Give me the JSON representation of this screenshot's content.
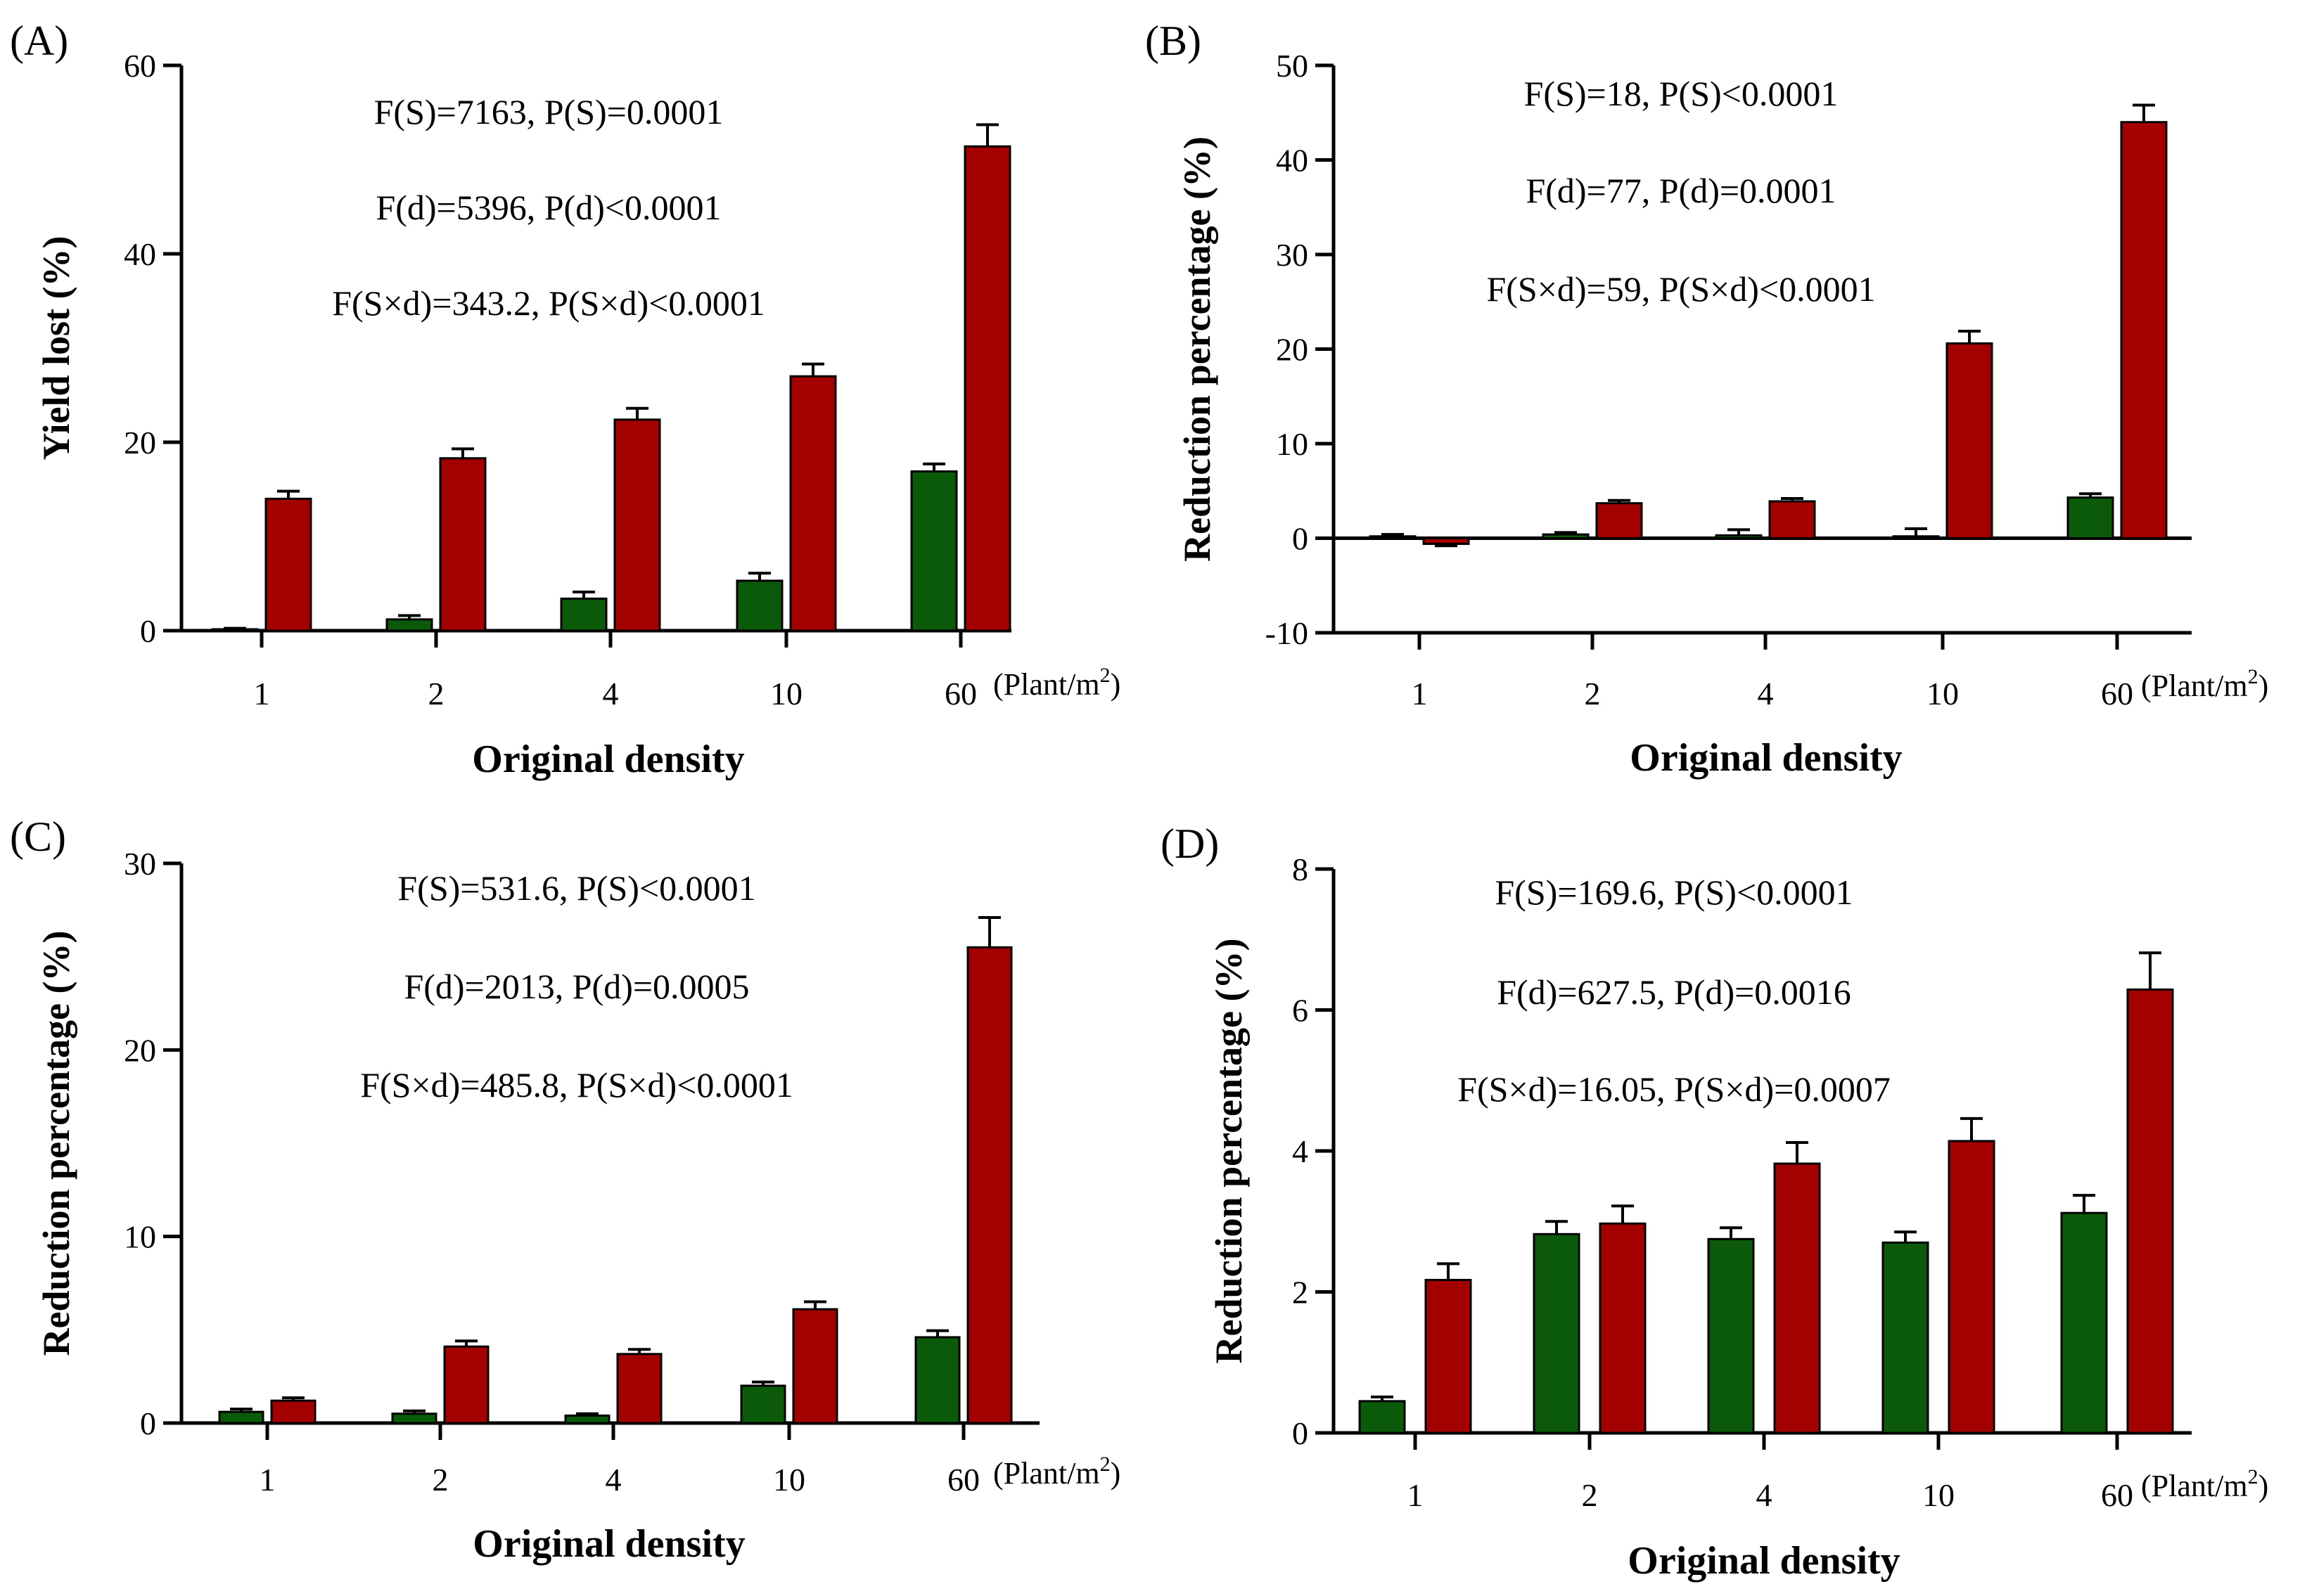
{
  "figure": {
    "density_unit_html": "(Plant/m<sup>2</sup>)",
    "colors": {
      "green": "#0a5a0a",
      "red": "#a30000",
      "axis": "#000000"
    }
  },
  "chart_data": [
    {
      "panel": "(A)",
      "type": "bar",
      "xlabel": "Original density",
      "ylabel": "Yield lost (%)",
      "categories": [
        "1",
        "2",
        "4",
        "10",
        "60"
      ],
      "ylim": [
        0,
        60
      ],
      "yticks": [
        0,
        20,
        40,
        60
      ],
      "series": [
        {
          "name": "green",
          "color": "#0a5a0a",
          "values": [
            0.15,
            1.2,
            3.4,
            5.3,
            16.9
          ],
          "errors": [
            0.1,
            0.4,
            0.7,
            0.8,
            0.8
          ]
        },
        {
          "name": "red",
          "color": "#a30000",
          "values": [
            14.0,
            18.3,
            22.4,
            27.0,
            51.4
          ],
          "errors": [
            0.8,
            1.0,
            1.2,
            1.3,
            2.3
          ]
        }
      ],
      "stats": [
        "F(S)=7163, P(S)=0.0001",
        "F(d)=5396, P(d)<0.0001",
        "F(S×d)=343.2, P(S×d)<0.0001"
      ]
    },
    {
      "panel": "(B)",
      "type": "bar",
      "xlabel": "Original density",
      "ylabel": "Reduction percentage (%)",
      "categories": [
        "1",
        "2",
        "4",
        "10",
        "60"
      ],
      "ylim": [
        -10,
        50
      ],
      "yticks": [
        -10,
        0,
        10,
        20,
        30,
        40,
        50
      ],
      "series": [
        {
          "name": "green",
          "color": "#0a5a0a",
          "values": [
            0.2,
            0.4,
            0.3,
            0.2,
            4.3
          ],
          "errors": [
            0.2,
            0.2,
            0.6,
            0.8,
            0.4
          ]
        },
        {
          "name": "red",
          "color": "#a30000",
          "values": [
            -0.6,
            3.7,
            3.9,
            20.6,
            44.0
          ],
          "errors": [
            0.2,
            0.3,
            0.3,
            1.3,
            1.8
          ]
        }
      ],
      "stats": [
        "F(S)=18, P(S)<0.0001",
        "F(d)=77, P(d)=0.0001",
        "F(S×d)=59, P(S×d)<0.0001"
      ]
    },
    {
      "panel": "(C)",
      "type": "bar",
      "xlabel": "Original density",
      "ylabel": "Reduction percentage (%)",
      "categories": [
        "1",
        "2",
        "4",
        "10",
        "60"
      ],
      "ylim": [
        0,
        30
      ],
      "yticks": [
        0,
        10,
        20,
        30
      ],
      "series": [
        {
          "name": "green",
          "color": "#0a5a0a",
          "values": [
            0.6,
            0.5,
            0.4,
            2.0,
            4.6
          ],
          "errors": [
            0.15,
            0.15,
            0.1,
            0.2,
            0.35
          ]
        },
        {
          "name": "red",
          "color": "#a30000",
          "values": [
            1.2,
            4.1,
            3.7,
            6.1,
            25.5
          ],
          "errors": [
            0.15,
            0.3,
            0.25,
            0.4,
            1.6
          ]
        }
      ],
      "stats": [
        "F(S)=531.6, P(S)<0.0001",
        "F(d)=2013, P(d)=0.0005",
        "F(S×d)=485.8, P(S×d)<0.0001"
      ]
    },
    {
      "panel": "(D)",
      "type": "bar",
      "xlabel": "Original density",
      "ylabel": "Reduction percentage (%)",
      "categories": [
        "1",
        "2",
        "4",
        "10",
        "60"
      ],
      "ylim": [
        0,
        8
      ],
      "yticks": [
        0,
        2,
        4,
        6,
        8
      ],
      "series": [
        {
          "name": "green",
          "color": "#0a5a0a",
          "values": [
            0.45,
            2.82,
            2.75,
            2.7,
            3.12
          ],
          "errors": [
            0.06,
            0.18,
            0.16,
            0.15,
            0.25
          ]
        },
        {
          "name": "red",
          "color": "#a30000",
          "values": [
            2.17,
            2.97,
            3.82,
            4.14,
            6.29
          ],
          "errors": [
            0.23,
            0.25,
            0.3,
            0.32,
            0.52
          ]
        }
      ],
      "stats": [
        "F(S)=169.6, P(S)<0.0001",
        "F(d)=627.5, P(d)=0.0016",
        "F(S×d)=16.05, P(S×d)=0.0007"
      ]
    }
  ]
}
